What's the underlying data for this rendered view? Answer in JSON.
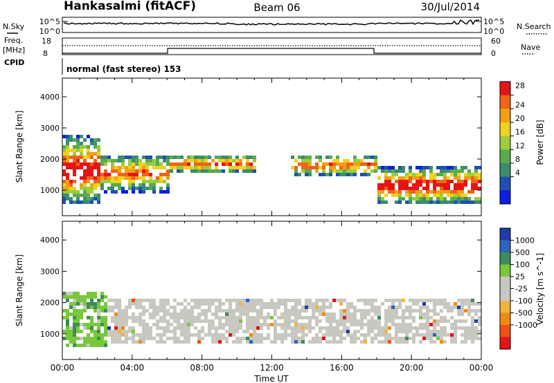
{
  "header": {
    "station": "Hankasalmi (fitACF)",
    "beam": "Beam 06",
    "date": "30/Jul/2014"
  },
  "top_panels": {
    "nsky_label": "N.Sky",
    "nsearch_label": "N.Search",
    "noise_ticks": [
      "10^5",
      "10^0"
    ],
    "freq_label_1": "Freq.",
    "freq_label_2": "[MHz]",
    "freq_ticks": [
      "18",
      "8"
    ],
    "nave_label": "Nave",
    "nave_ticks": [
      "60",
      "0"
    ],
    "cpid_label": "CPID",
    "cpid_text": "normal (fast stereo) 153"
  },
  "colors": {
    "power_scale": [
      "#0a1ee6",
      "#1e50b4",
      "#3c8c6e",
      "#5aaa50",
      "#9bcd3c",
      "#f0d21e",
      "#f0a014",
      "#f06414",
      "#e61414"
    ],
    "velocity_scale": [
      "#1e3caa",
      "#2d64be",
      "#3c8c5a",
      "#78c83c",
      "#c8c8c0",
      "#c8c8c0",
      "#f0b43c",
      "#f08c14",
      "#f05014",
      "#e61414"
    ]
  },
  "chart_data": [
    {
      "type": "heatmap",
      "name": "power-panel",
      "xlabel": "Time UT",
      "ylabel": "Slant Range [km]",
      "x_ticks": [
        "00:00",
        "04:00",
        "08:00",
        "12:00",
        "16:00",
        "20:00",
        "00:00"
      ],
      "x_range": [
        0,
        24
      ],
      "y_ticks": [
        1000,
        2000,
        3000,
        4000
      ],
      "y_range": [
        180,
        4600
      ],
      "colorbar_label": "Power [dB]",
      "colorbar_ticks": [
        "28",
        "24",
        "20",
        "16",
        "12",
        "8",
        "4"
      ],
      "colorbar_range": [
        0,
        30
      ],
      "scatter_bands": [
        {
          "start_h": 0.0,
          "end_h": 2.0,
          "low_km": 600,
          "high_km": 2800,
          "level": "strong"
        },
        {
          "start_h": 2.0,
          "end_h": 6.0,
          "low_km": 1000,
          "high_km": 2200,
          "level": "medium"
        },
        {
          "start_h": 6.0,
          "end_h": 11.0,
          "low_km": 1600,
          "high_km": 2200,
          "level": "medium"
        },
        {
          "start_h": 13.0,
          "end_h": 18.0,
          "low_km": 1500,
          "high_km": 2200,
          "level": "medium"
        },
        {
          "start_h": 18.0,
          "end_h": 24.0,
          "low_km": 600,
          "high_km": 1800,
          "level": "strong"
        }
      ]
    },
    {
      "type": "heatmap",
      "name": "velocity-panel",
      "xlabel": "Time UT",
      "ylabel": "Slant Range [km]",
      "x_ticks": [
        "00:00",
        "04:00",
        "08:00",
        "12:00",
        "16:00",
        "20:00",
        "00:00"
      ],
      "x_range": [
        0,
        24
      ],
      "y_ticks": [
        1000,
        2000,
        3000,
        4000
      ],
      "y_range": [
        180,
        4600
      ],
      "colorbar_label": "Velocity [m s^-1]",
      "colorbar_ticks": [
        "1000",
        "500",
        "100",
        "25",
        "-25",
        "-100",
        "-500",
        "-1000"
      ],
      "scatter_bands": [
        {
          "start_h": 0.0,
          "end_h": 2.5,
          "low_km": 600,
          "high_km": 2400,
          "dominant": "positive"
        },
        {
          "start_h": 2.5,
          "end_h": 24.0,
          "low_km": 700,
          "high_km": 2200,
          "dominant": "near-zero"
        }
      ]
    }
  ]
}
